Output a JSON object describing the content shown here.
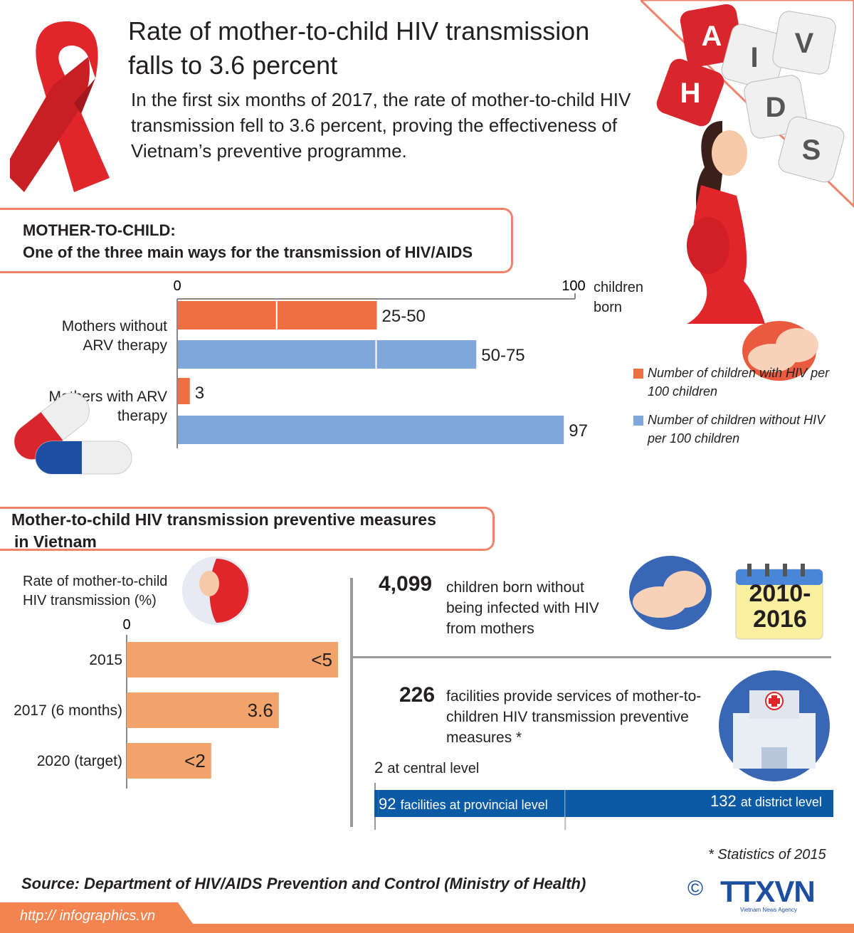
{
  "header": {
    "title": "Rate of mother-to-child HIV transmission falls to 3.6 percent",
    "intro": "In the first six months of 2017, the rate of mother-to-child HIV transmission fell to 3.6 percent, proving the effectiveness of Vietnam’s preventive programme.",
    "dice_letters": [
      "A",
      "I",
      "V",
      "H",
      "D",
      "S"
    ]
  },
  "section1": {
    "heading": "MOTHER-TO-CHILD:",
    "subheading": "One of the three main ways for the transmission of HIV/AIDS"
  },
  "section2": {
    "heading_line1": "Mother-to-child HIV transmission preventive measures",
    "heading_line2": "in Vietnam"
  },
  "colors": {
    "orange": "#ef6f43",
    "blue": "#7ea8dc",
    "peach": "#f2a36b",
    "navy": "#0b5aa6",
    "red": "#e0252b",
    "accent_border": "#f1836b",
    "footer": "#f3834f"
  },
  "chart_data": [
    {
      "type": "bar",
      "orientation": "horizontal",
      "axis_ticks": [
        "0",
        "100"
      ],
      "axis_unit": "children born",
      "xlim": [
        0,
        100
      ],
      "categories": [
        "Mothers without ARV therapy",
        "Mothers with ARV therapy"
      ],
      "series": [
        {
          "name": "Number of children with HIV per 100 children",
          "values": [
            50,
            3
          ],
          "labels": [
            "25-50",
            "3"
          ],
          "split_at": [
            25,
            null
          ]
        },
        {
          "name": "Number of children without HIV per 100 children",
          "values": [
            75,
            97
          ],
          "labels": [
            "50-75",
            "97"
          ],
          "split_at": [
            50,
            null
          ]
        }
      ]
    },
    {
      "type": "bar",
      "orientation": "horizontal",
      "title": "Rate of mother-to-child HIV transmission (%)",
      "axis_ticks": [
        "0"
      ],
      "xlim": [
        0,
        5
      ],
      "categories": [
        "2015",
        "2017 (6 months)",
        "2020 (target)"
      ],
      "values": [
        5,
        3.6,
        2
      ],
      "labels": [
        "<5",
        "3.6",
        "<2"
      ]
    },
    {
      "type": "bar",
      "orientation": "horizontal",
      "stacked": true,
      "categories": [
        "2 at central level",
        "92 facilities at provincial level",
        "132 at district level"
      ],
      "values": [
        2,
        92,
        132
      ]
    }
  ],
  "stats": {
    "children_number": "4,099",
    "children_text": "children born without being infected with HIV from mothers",
    "years": "2010-2016",
    "facilities_number": "226",
    "facilities_text": "facilities provide services of mother-to-children HIV transmission preventive measures *",
    "central_num": "2",
    "central_text": "at central level",
    "provincial_num": "92",
    "provincial_text": "facilities at provincial level",
    "district_num": "132",
    "district_text": "at district level"
  },
  "footer": {
    "footnote": "* Statistics of 2015",
    "source": "Source: Department of HIV/AIDS Prevention and Control (Ministry of Health)",
    "url": "http:// infographics.vn",
    "copyright": "©",
    "logo": "TTXVN",
    "agency": "Vietnam News Agency"
  }
}
